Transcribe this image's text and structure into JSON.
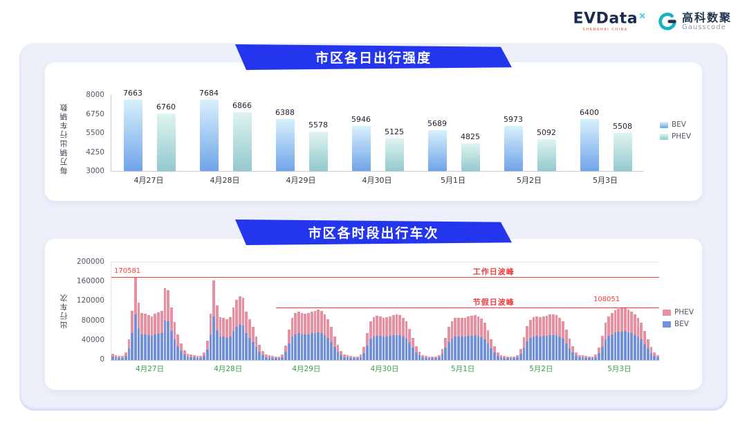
{
  "logos": {
    "evdata_text": "EVData",
    "evdata_sup": "×",
    "evdata_sub": "SHANGHAI CHINA",
    "gausscode_cn": "高科数聚",
    "gausscode_en": "Gausscode"
  },
  "colors": {
    "banner_blue": "#2336ee",
    "bev_top": "#d8f0fb",
    "bev_bottom": "#6fa4e9",
    "phev_top": "#def4ef",
    "phev_bottom": "#93c9cf",
    "c2_phev": "#e98fa2",
    "c2_bev": "#7291dc",
    "annotation_red": "#f23c3c",
    "xlabel_green": "#3aa04a",
    "evdata_navy": "#1b2b4d",
    "evdata_cyan": "#2cc5e8",
    "gauss_teal": "#18b0c8",
    "gauss_dark": "#21354f"
  },
  "chart_data": [
    {
      "type": "bar",
      "title": "市区各日出行强度",
      "ylabel": "每万辆出行车辆数",
      "ylim": [
        3000,
        8000
      ],
      "yticks": [
        8000,
        6750,
        5500,
        4250,
        3000
      ],
      "categories": [
        "4月27日",
        "4月28日",
        "4月29日",
        "4月30日",
        "5月1日",
        "5月2日",
        "5月3日"
      ],
      "series": [
        {
          "name": "BEV",
          "values": [
            7663,
            7684,
            6388,
            5946,
            5689,
            5973,
            6400
          ]
        },
        {
          "name": "PHEV",
          "values": [
            6760,
            6866,
            5578,
            5125,
            4825,
            5092,
            5508
          ]
        }
      ],
      "legend": [
        "BEV",
        "PHEV"
      ]
    },
    {
      "type": "bar",
      "stacked": true,
      "title": "市区各时段出行车次",
      "ylabel": "出行车次",
      "ylim": [
        0,
        200000
      ],
      "yticks": [
        200000,
        160000,
        120000,
        80000,
        40000,
        0
      ],
      "categories": [
        "4月27日",
        "4月28日",
        "4月29日",
        "4月30日",
        "5月1日",
        "5月2日",
        "5月3日"
      ],
      "bars_per_day": 24,
      "bev_share": 0.55,
      "totals_by_day": [
        [
          13000,
          10000,
          9000,
          9000,
          16000,
          42000,
          100000,
          170581,
          118000,
          97000,
          95000,
          92000,
          90000,
          95000,
          98000,
          100000,
          148000,
          143000,
          108000,
          78000,
          52000,
          34000,
          20000,
          13000
        ],
        [
          12000,
          9500,
          8500,
          8500,
          15000,
          40000,
          95000,
          163000,
          112000,
          88000,
          86000,
          84000,
          88000,
          108000,
          124000,
          131000,
          127000,
          99000,
          84000,
          68000,
          48000,
          31000,
          18000,
          12000
        ],
        [
          10000,
          8000,
          7000,
          7000,
          12000,
          30000,
          62000,
          86000,
          96000,
          99000,
          97000,
          95000,
          97000,
          99000,
          101000,
          103000,
          100000,
          94000,
          84000,
          68000,
          48000,
          31000,
          18000,
          11000
        ],
        [
          10000,
          8000,
          7000,
          7000,
          11000,
          27000,
          55000,
          80000,
          88000,
          91000,
          89000,
          87000,
          88000,
          90000,
          92000,
          94000,
          92000,
          87000,
          79000,
          64000,
          45000,
          29000,
          17000,
          10000
        ],
        [
          9000,
          7000,
          6500,
          6500,
          10000,
          22000,
          46000,
          68000,
          80000,
          86000,
          87000,
          86000,
          87000,
          89000,
          91000,
          92000,
          90000,
          85000,
          77000,
          61000,
          43000,
          28000,
          16000,
          10000
        ],
        [
          9000,
          7000,
          6500,
          6500,
          10000,
          23000,
          47000,
          70000,
          82000,
          88000,
          89000,
          88000,
          89000,
          91000,
          93000,
          94000,
          92000,
          87000,
          79000,
          63000,
          44000,
          28000,
          16000,
          10000
        ],
        [
          10000,
          8000,
          7000,
          7000,
          11000,
          25000,
          50000,
          76000,
          90000,
          97000,
          102000,
          105000,
          107000,
          108051,
          104000,
          99000,
          93000,
          86000,
          76000,
          60000,
          42000,
          27000,
          16000,
          10000
        ]
      ],
      "annotations": {
        "weekday_peak": {
          "label": "工作日波峰",
          "value": 170581
        },
        "holiday_peak": {
          "label": "节假日波峰",
          "value": 108051
        }
      },
      "legend": [
        "PHEV",
        "BEV"
      ]
    }
  ]
}
